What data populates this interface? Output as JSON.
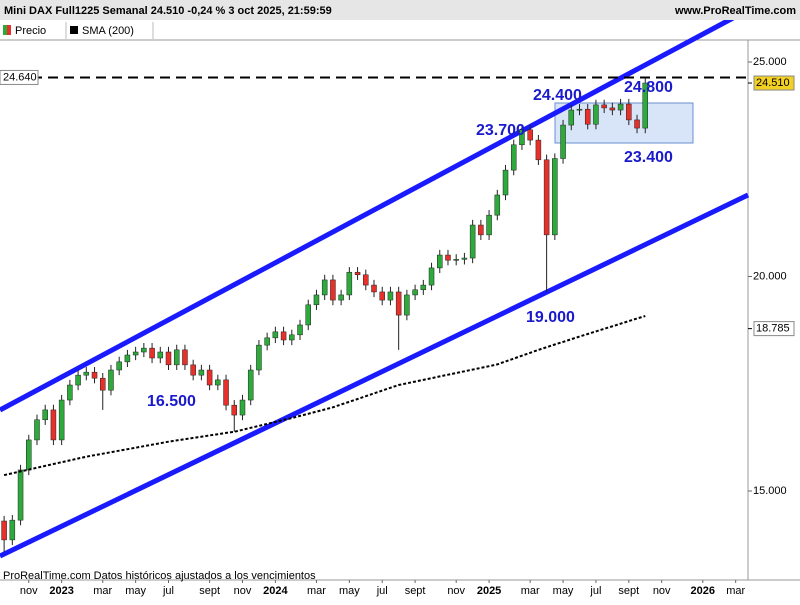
{
  "header": {
    "title": "Mini DAX Full1225 Semanal 24.510 -0,24 % 3 oct 2025, 21:59:59",
    "site": "www.ProRealTime.com"
  },
  "footer": "ProRealTime.com  Datos históricos ajustados a los vencimientos",
  "chart_data": {
    "type": "candlestick",
    "categories": [
      null,
      null,
      null,
      "nov",
      null,
      null,
      null,
      "2023",
      null,
      null,
      null,
      null,
      "mar",
      null,
      null,
      null,
      "may",
      null,
      null,
      null,
      "jul",
      null,
      null,
      null,
      null,
      "sept",
      null,
      null,
      null,
      "nov",
      null,
      null,
      null,
      "2024",
      null,
      null,
      null,
      null,
      "mar",
      null,
      null,
      null,
      "may",
      null,
      null,
      null,
      "jul",
      null,
      null,
      null,
      "sept",
      null,
      null,
      null,
      null,
      "nov",
      null,
      null,
      null,
      "2025",
      null,
      null,
      null,
      null,
      "mar",
      null,
      null,
      null,
      "may",
      null,
      null,
      null,
      "jul",
      null,
      null,
      null,
      "sept",
      null,
      null,
      null,
      "nov",
      null,
      null,
      null,
      null,
      "2026",
      null,
      null,
      null,
      "mar",
      null
    ],
    "series": [
      {
        "name": "Precio",
        "up_color": "#2eaa3c",
        "down_color": "#e8302b",
        "open": [
          14300,
          13860,
          14320,
          15490,
          16190,
          16660,
          16890,
          16190,
          17120,
          17470,
          17700,
          17770,
          17630,
          17350,
          17820,
          18010,
          18170,
          18240,
          18330,
          18100,
          18240,
          17940,
          18290,
          17940,
          17700,
          17820,
          17470,
          17590,
          17000,
          16770,
          17120,
          17820,
          18400,
          18570,
          18710,
          18520,
          18640,
          18870,
          19340,
          19570,
          19920,
          19450,
          19570,
          20100,
          20040,
          19800,
          19640,
          19450,
          19640,
          19100,
          19570,
          19690,
          19800,
          20200,
          20500,
          20380,
          20400,
          20430,
          21200,
          20970,
          21430,
          21900,
          22480,
          23070,
          23420,
          23180,
          22720,
          20970,
          22750,
          23530,
          23880,
          23900,
          23550,
          24000,
          23930,
          23880,
          24020,
          23650,
          23460,
          null,
          null,
          null,
          null,
          null,
          null,
          null,
          null,
          null,
          null,
          null,
          null
        ],
        "high": [
          14420,
          14440,
          15610,
          16310,
          16780,
          17010,
          17010,
          17240,
          17590,
          17820,
          17890,
          17890,
          17750,
          17940,
          18130,
          18290,
          18360,
          18450,
          18450,
          18360,
          18360,
          18410,
          18410,
          18060,
          17940,
          17940,
          17710,
          17710,
          17120,
          17240,
          17940,
          18520,
          18690,
          18830,
          18830,
          18760,
          18990,
          19460,
          19690,
          20040,
          20040,
          19690,
          20220,
          20220,
          20160,
          19920,
          19760,
          19760,
          19760,
          19690,
          19810,
          19920,
          20320,
          20620,
          20620,
          20520,
          20550,
          21320,
          21320,
          21550,
          22020,
          22600,
          23190,
          23540,
          23540,
          23300,
          22840,
          22870,
          23650,
          24000,
          24020,
          24020,
          24120,
          24120,
          24050,
          24140,
          24140,
          23770,
          24630,
          null,
          null,
          null,
          null,
          null,
          null,
          null,
          null,
          null,
          null,
          null,
          null
        ],
        "low": [
          13580,
          13740,
          14200,
          15370,
          16070,
          16540,
          16070,
          16070,
          17000,
          17350,
          17580,
          17510,
          16890,
          17230,
          17700,
          17890,
          18050,
          18120,
          17980,
          17980,
          17820,
          17820,
          17820,
          17580,
          17580,
          17350,
          17350,
          16880,
          16380,
          16650,
          17000,
          17700,
          18280,
          18450,
          18400,
          18400,
          18520,
          18750,
          19220,
          19450,
          19330,
          19330,
          19450,
          19920,
          19680,
          19520,
          19330,
          19330,
          18290,
          18980,
          19450,
          19570,
          19680,
          20080,
          20260,
          20260,
          20280,
          20310,
          20850,
          20850,
          21310,
          21780,
          22360,
          22950,
          23060,
          22600,
          19640,
          20850,
          22630,
          23410,
          23760,
          23430,
          23430,
          23810,
          23760,
          23760,
          23530,
          23340,
          23340,
          null,
          null,
          null,
          null,
          null,
          null,
          null,
          null,
          null,
          null,
          null,
          null
        ],
        "close": [
          13860,
          14320,
          15490,
          16190,
          16660,
          16890,
          16190,
          17120,
          17470,
          17700,
          17770,
          17630,
          17350,
          17820,
          18010,
          18170,
          18240,
          18330,
          18100,
          18240,
          17940,
          18290,
          17940,
          17700,
          17820,
          17470,
          17590,
          17000,
          16770,
          17120,
          17820,
          18400,
          18570,
          18710,
          18520,
          18640,
          18870,
          19340,
          19570,
          19920,
          19450,
          19570,
          20100,
          20040,
          19800,
          19640,
          19450,
          19640,
          19100,
          19570,
          19690,
          19800,
          20200,
          20500,
          20380,
          20400,
          20430,
          21200,
          20970,
          21430,
          21900,
          22480,
          23070,
          23420,
          23180,
          22720,
          20970,
          22750,
          23530,
          23880,
          23900,
          23550,
          24000,
          23930,
          23880,
          24020,
          23650,
          23460,
          24510,
          null,
          null,
          null,
          null,
          null,
          null,
          null,
          null,
          null,
          null,
          null,
          null
        ]
      },
      {
        "name": "SMA (200)",
        "color": "#000000",
        "values": [
          15370,
          15413,
          15456,
          15499,
          15542,
          15585,
          15628,
          15671,
          15714,
          15757,
          15800,
          15835,
          15870,
          15905,
          15940,
          15975,
          16010,
          16045,
          16080,
          16115,
          16150,
          16179,
          16208,
          16237,
          16266,
          16295,
          16324,
          16353,
          16380,
          16426,
          16472,
          16518,
          16564,
          16610,
          16656,
          16700,
          16750,
          16800,
          16850,
          16900,
          16950,
          17015,
          17080,
          17145,
          17210,
          17275,
          17340,
          17405,
          17470,
          17510,
          17550,
          17590,
          17630,
          17670,
          17710,
          17750,
          17790,
          17830,
          17870,
          17910,
          17950,
          18018,
          18086,
          18154,
          18222,
          18290,
          18352,
          18414,
          18476,
          18538,
          18600,
          18660,
          18720,
          18780,
          18840,
          18900,
          18960,
          19020,
          19080,
          null,
          null,
          null,
          null,
          null,
          null,
          null,
          null,
          null,
          null,
          null,
          null
        ]
      }
    ],
    "ylim": [
      12925,
      25513
    ],
    "yticks": [
      {
        "value": 25000,
        "label": "25.000"
      },
      {
        "value": 20000,
        "label": "20.000"
      },
      {
        "value": 15000,
        "label": "15.000"
      }
    ],
    "price_labels": [
      {
        "value": 24640,
        "label": "24.640"
      },
      {
        "value": 24510,
        "label": "24.510"
      },
      {
        "value": 18785,
        "label": "18.785"
      }
    ],
    "annotations": [
      "24.400",
      "24.800",
      "23.700",
      "23.400",
      "16.500",
      "19.000"
    ]
  }
}
